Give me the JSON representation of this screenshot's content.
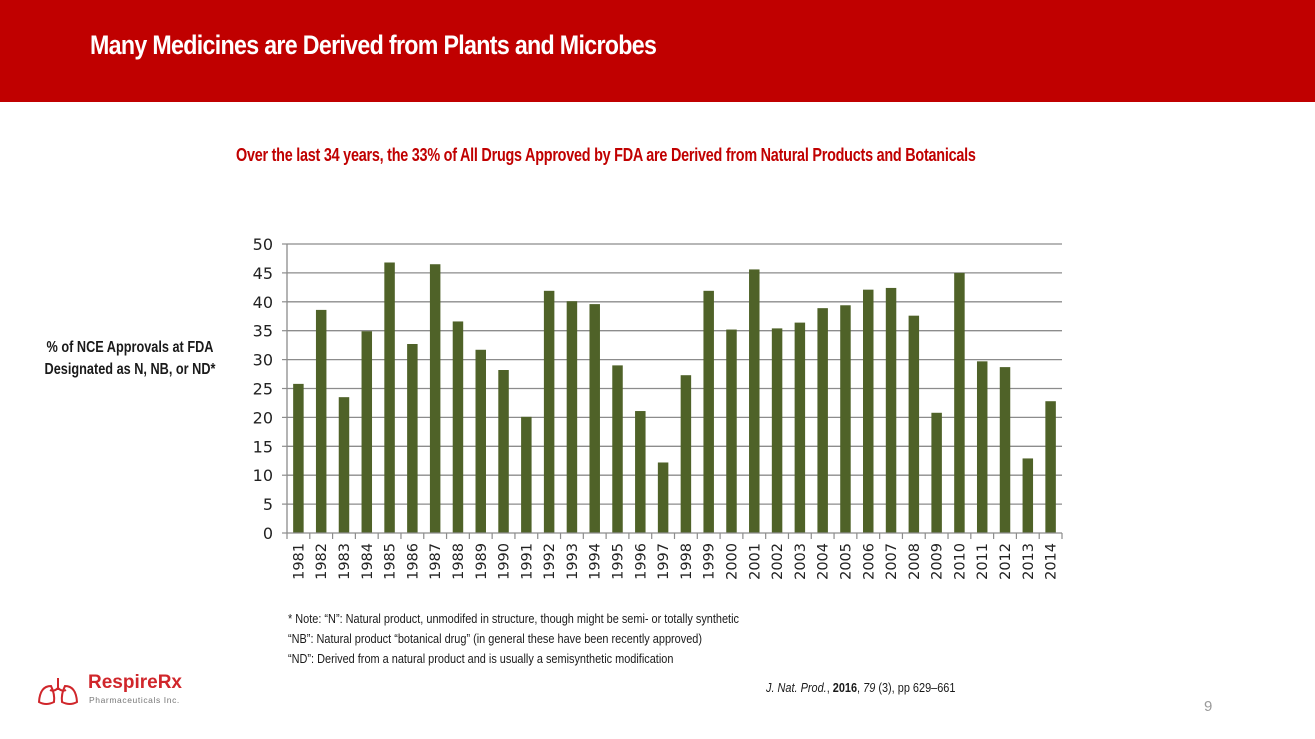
{
  "header": {
    "title": "Many Medicines are Derived from Plants and Microbes"
  },
  "subtitle": "Over the last 34 years, the 33%  of All Drugs Approved by FDA are Derived from Natural Products and Botanicals",
  "notes": [
    "* Note: “N”: Natural product, unmodifed in structure, though might be semi- or totally synthetic",
    "“NB”: Natural product “botanical drug” (in general these have been recently approved)",
    "“ND”: Derived from a natural product and is usually a semisynthetic modification"
  ],
  "citation": {
    "journal": "J. Nat. Prod.",
    "sep1": ", ",
    "year": "2016",
    "sep2": ", ",
    "volume": "79",
    "rest": " (3), pp 629–661"
  },
  "page_number": "9",
  "logo": {
    "name": "RespireRx",
    "subtitle": "Pharmaceuticals Inc.",
    "icon": "lungs-icon"
  },
  "colors": {
    "brand_red": "#c00000",
    "bar": "#4f6228",
    "grid": "#8c8c8c"
  },
  "chart_data": {
    "type": "bar",
    "title": "",
    "xlabel": "",
    "ylabel": "% of NCE Approvals at FDA Designated as N, NB, or ND*",
    "ylabel_lines": [
      "% of NCE Approvals at FDA",
      "Designated as N, NB, or ND*"
    ],
    "ylim": [
      0,
      50
    ],
    "yticks": [
      0,
      5,
      10,
      15,
      20,
      25,
      30,
      35,
      40,
      45,
      50
    ],
    "grid": true,
    "legend": "none",
    "categories": [
      "1981",
      "1982",
      "1983",
      "1984",
      "1985",
      "1986",
      "1987",
      "1988",
      "1989",
      "1990",
      "1991",
      "1992",
      "1993",
      "1994",
      "1995",
      "1996",
      "1997",
      "1998",
      "1999",
      "2000",
      "2001",
      "2002",
      "2003",
      "2004",
      "2005",
      "2006",
      "2007",
      "2008",
      "2009",
      "2010",
      "2011",
      "2012",
      "2013",
      "2014"
    ],
    "values": [
      25.8,
      38.6,
      23.5,
      34.9,
      46.8,
      32.7,
      46.5,
      36.6,
      31.7,
      28.2,
      20.1,
      41.9,
      40.1,
      39.6,
      29.0,
      21.1,
      12.2,
      27.3,
      41.9,
      35.2,
      45.6,
      35.4,
      36.4,
      38.9,
      39.4,
      42.1,
      42.4,
      37.6,
      20.8,
      45.0,
      29.7,
      28.7,
      12.9,
      22.8
    ]
  }
}
